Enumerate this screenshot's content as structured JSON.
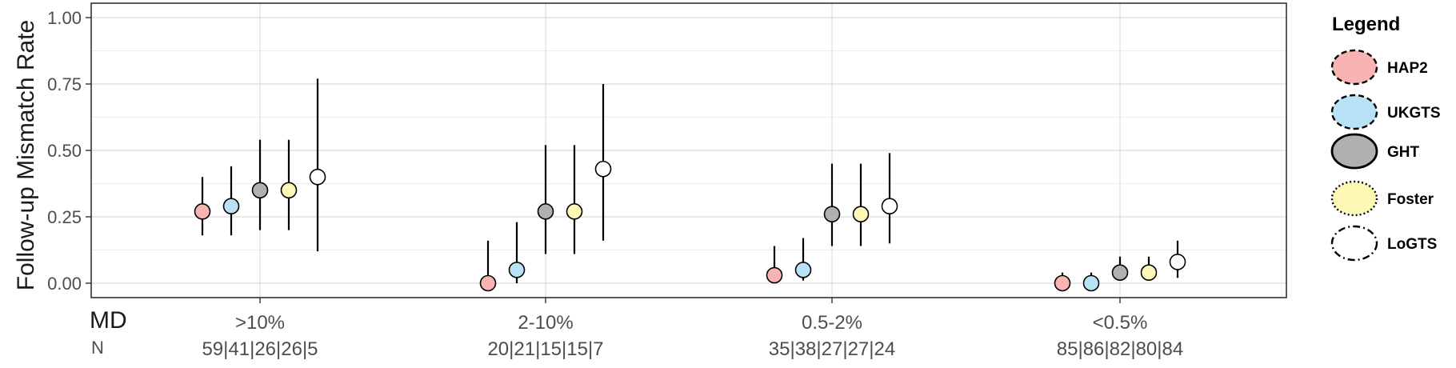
{
  "chart_data": {
    "type": "scatter",
    "ylabel": "Follow-up Mismatch Rate",
    "xlabel": "MD",
    "n_label": "N",
    "ylim": [
      -0.05,
      1.05
    ],
    "yticks": [
      "0.00",
      "0.25",
      "0.50",
      "0.75",
      "1.00"
    ],
    "grid": true,
    "legend_position": "right",
    "legend_title": "Legend",
    "categories": [
      ">10%",
      "2-10%",
      "0.5-2%",
      "<0.5%"
    ],
    "n_labels": [
      "59|41|26|26|5",
      "20|21|15|15|7",
      "35|38|27|27|24",
      "85|86|82|80|84"
    ],
    "series": [
      {
        "name": "HAP2",
        "color": "#f8b3b3",
        "stroke_style": "dashed",
        "points": [
          {
            "y": 0.27,
            "lo": 0.18,
            "hi": 0.4
          },
          {
            "y": 0.0,
            "lo": 0.0,
            "hi": 0.16
          },
          {
            "y": 0.03,
            "lo": 0.0,
            "hi": 0.14
          },
          {
            "y": 0.0,
            "lo": 0.0,
            "hi": 0.04
          }
        ]
      },
      {
        "name": "UKGTS",
        "color": "#b8e2f5",
        "stroke_style": "dashed",
        "points": [
          {
            "y": 0.29,
            "lo": 0.18,
            "hi": 0.44
          },
          {
            "y": 0.05,
            "lo": 0.0,
            "hi": 0.23
          },
          {
            "y": 0.05,
            "lo": 0.01,
            "hi": 0.17
          },
          {
            "y": 0.0,
            "lo": 0.0,
            "hi": 0.04
          }
        ]
      },
      {
        "name": "GHT",
        "color": "#b0b0b0",
        "stroke_style": "solid",
        "points": [
          {
            "y": 0.35,
            "lo": 0.2,
            "hi": 0.54
          },
          {
            "y": 0.27,
            "lo": 0.11,
            "hi": 0.52
          },
          {
            "y": 0.26,
            "lo": 0.14,
            "hi": 0.45
          },
          {
            "y": 0.04,
            "lo": 0.01,
            "hi": 0.1
          }
        ]
      },
      {
        "name": "Foster",
        "color": "#fdf8b5",
        "stroke_style": "dotted",
        "points": [
          {
            "y": 0.35,
            "lo": 0.2,
            "hi": 0.54
          },
          {
            "y": 0.27,
            "lo": 0.11,
            "hi": 0.52
          },
          {
            "y": 0.26,
            "lo": 0.14,
            "hi": 0.45
          },
          {
            "y": 0.04,
            "lo": 0.01,
            "hi": 0.1
          }
        ]
      },
      {
        "name": "LoGTS",
        "color": "#ffffff",
        "stroke_style": "dashdot",
        "points": [
          {
            "y": 0.4,
            "lo": 0.12,
            "hi": 0.77
          },
          {
            "y": 0.43,
            "lo": 0.16,
            "hi": 0.75
          },
          {
            "y": 0.29,
            "lo": 0.15,
            "hi": 0.49
          },
          {
            "y": 0.08,
            "lo": 0.02,
            "hi": 0.16
          }
        ]
      }
    ]
  }
}
